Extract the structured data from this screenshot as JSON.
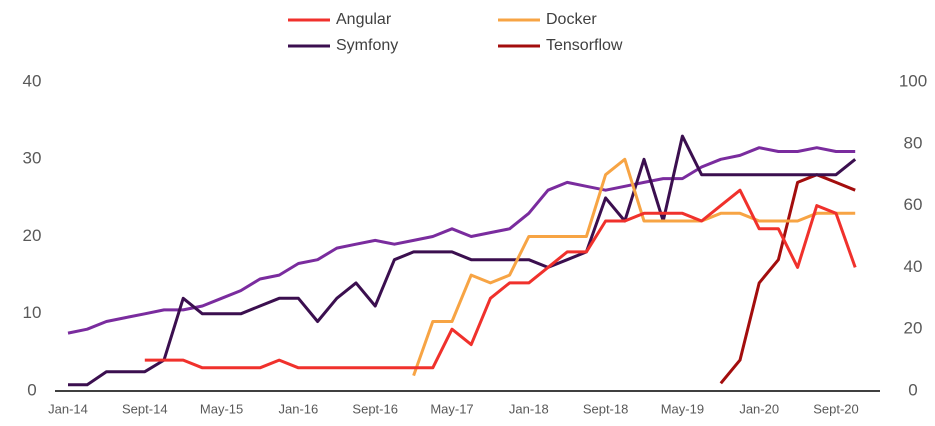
{
  "chart_data": {
    "type": "line",
    "categories": [
      "Jan-14",
      null,
      null,
      null,
      "Sept-14",
      null,
      null,
      null,
      "May-15",
      null,
      null,
      null,
      "Jan-16",
      null,
      null,
      null,
      "Sept-16",
      null,
      null,
      null,
      "May-17",
      null,
      null,
      null,
      "Jan-18",
      null,
      null,
      null,
      "Sept-18",
      null,
      null,
      null,
      "May-19",
      null,
      null,
      null,
      "Jan-20",
      null,
      null,
      null,
      "Sept-20",
      null
    ],
    "series": [
      {
        "name": "Angular",
        "color": "#f0312c",
        "values": [
          null,
          null,
          null,
          null,
          4,
          4,
          4,
          3,
          3,
          3,
          3,
          4,
          3,
          3,
          3,
          3,
          3,
          3,
          3,
          3,
          8,
          6,
          12,
          14,
          14,
          16,
          18,
          18,
          22,
          22,
          23,
          23,
          23,
          22,
          24,
          26,
          21,
          21,
          16,
          24,
          23,
          16
        ]
      },
      {
        "name": "Docker",
        "color": "#f7a444",
        "values": [
          null,
          null,
          null,
          null,
          null,
          null,
          null,
          null,
          null,
          null,
          null,
          null,
          null,
          null,
          null,
          null,
          null,
          null,
          2,
          9,
          9,
          15,
          14,
          15,
          20,
          20,
          20,
          20,
          28,
          30,
          22,
          22,
          22,
          22,
          23,
          23,
          22,
          22,
          22,
          23,
          23,
          23
        ]
      },
      {
        "name": "Symfony",
        "color": "#3b0f4f",
        "values": [
          0.8,
          0.8,
          2.5,
          2.5,
          2.5,
          4,
          12,
          10,
          10,
          10,
          11,
          12,
          12,
          9,
          12,
          14,
          11,
          17,
          18,
          18,
          18,
          17,
          17,
          17,
          17,
          16,
          17,
          18,
          25,
          22,
          30,
          22,
          33,
          28,
          28,
          28,
          28,
          28,
          28,
          28,
          28,
          30
        ]
      },
      {
        "name": "Tensorflow",
        "color": "#a30d0d",
        "values": [
          null,
          null,
          null,
          null,
          null,
          null,
          null,
          null,
          null,
          null,
          null,
          null,
          null,
          null,
          null,
          null,
          null,
          null,
          null,
          null,
          null,
          null,
          null,
          null,
          null,
          null,
          null,
          null,
          null,
          null,
          null,
          null,
          null,
          null,
          1,
          4,
          14,
          17,
          27,
          28,
          27,
          26
        ]
      },
      {
        "color": "#7a2c9e",
        "values": [
          7.5,
          8,
          9,
          9.5,
          10,
          10.5,
          10.5,
          11,
          12,
          13,
          14.5,
          15,
          16.5,
          17,
          18.5,
          19,
          19.5,
          19,
          19.5,
          20,
          21,
          20,
          20.5,
          21,
          23,
          26,
          27,
          26.5,
          26,
          26.5,
          27,
          27.5,
          27.5,
          29,
          30,
          30.5,
          31.5,
          31,
          31,
          31.5,
          31,
          31
        ]
      }
    ],
    "ylim": [
      0,
      40
    ],
    "yticks": [
      0,
      10,
      20,
      30,
      40
    ],
    "y2lim": [
      0,
      100
    ],
    "y2ticks": [
      0,
      20,
      40,
      60,
      80,
      100
    ]
  }
}
